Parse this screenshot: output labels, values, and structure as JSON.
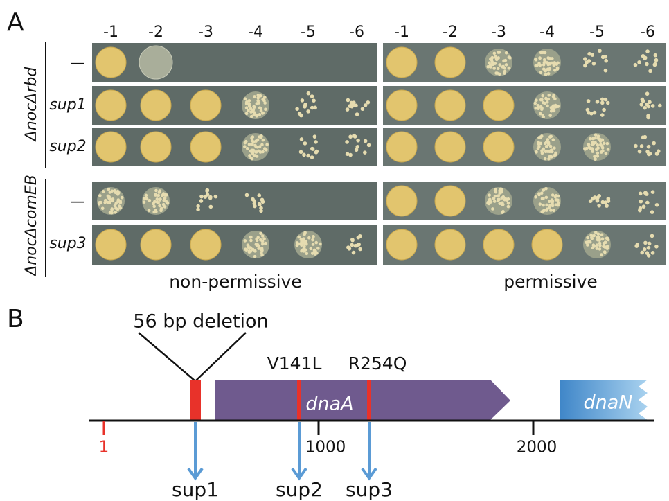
{
  "panel_a": {
    "label": "A",
    "dilutions_left": [
      "-1",
      "-2",
      "-3",
      "-4",
      "-5",
      "-6"
    ],
    "dilutions_right": [
      "-1",
      "-2",
      "-3",
      "-4",
      "-5",
      "-6"
    ],
    "strains": [
      {
        "genotype": "ΔnocΔrbd",
        "rows": [
          "—",
          "sup1",
          "sup2"
        ]
      },
      {
        "genotype": "ΔnocΔcomEB",
        "rows": [
          "—",
          "sup3"
        ]
      }
    ],
    "conditions": [
      "non-permissive",
      "permissive"
    ]
  },
  "panel_b": {
    "label": "B",
    "deletion": "56 bp deletion",
    "mutations": [
      "V141L",
      "R254Q"
    ],
    "genes": [
      "dnaA",
      "dnaN"
    ],
    "scale": [
      "1",
      "1000",
      "2000"
    ],
    "suppressors": [
      "sup1",
      "sup2",
      "sup3"
    ]
  }
}
